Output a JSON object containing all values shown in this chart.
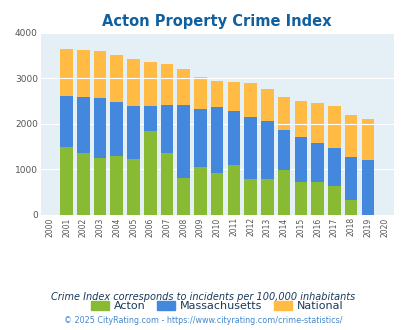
{
  "title": "Acton Property Crime Index",
  "title_color": "#1060a0",
  "years": [
    2000,
    2001,
    2002,
    2003,
    2004,
    2005,
    2006,
    2007,
    2008,
    2009,
    2010,
    2011,
    2012,
    2013,
    2014,
    2015,
    2016,
    2017,
    2018,
    2019,
    2020
  ],
  "acton": [
    0,
    1480,
    1350,
    1250,
    1280,
    1220,
    1840,
    1360,
    800,
    1040,
    920,
    1100,
    780,
    780,
    980,
    720,
    720,
    630,
    310,
    0,
    0
  ],
  "massachusetts": [
    0,
    2620,
    2600,
    2570,
    2490,
    2390,
    2400,
    2420,
    2420,
    2330,
    2360,
    2270,
    2150,
    2060,
    1870,
    1700,
    1580,
    1460,
    1270,
    1200,
    0
  ],
  "national": [
    0,
    3650,
    3620,
    3600,
    3510,
    3420,
    3360,
    3320,
    3200,
    3040,
    2950,
    2930,
    2890,
    2760,
    2600,
    2500,
    2460,
    2400,
    2200,
    2110,
    0
  ],
  "acton_color": "#88bb33",
  "mass_color": "#4488dd",
  "national_color": "#ffbb44",
  "bg_color": "#e4f0f5",
  "ylim": [
    0,
    4000
  ],
  "footnote1": "Crime Index corresponds to incidents per 100,000 inhabitants",
  "footnote2": "© 2025 CityRating.com - https://www.cityrating.com/crime-statistics/",
  "footnote1_color": "#1a3a5c",
  "footnote2_color": "#4488cc",
  "legend_labels": [
    "Acton",
    "Massachusetts",
    "National"
  ],
  "legend_text_color": "#1a3a5c"
}
